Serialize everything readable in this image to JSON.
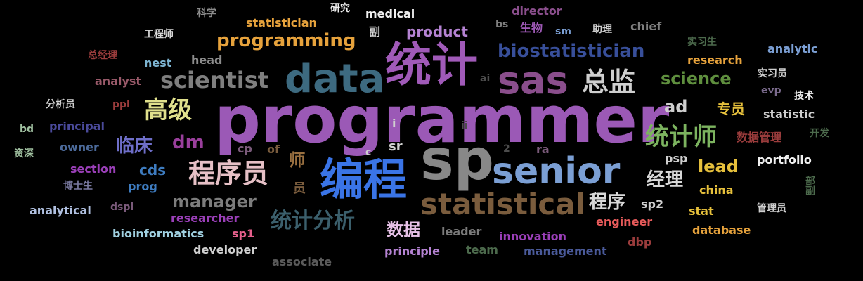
{
  "words": [
    {
      "text": "programmer",
      "color": "#9b59b6"
    },
    {
      "text": "sp",
      "color": "#888888"
    },
    {
      "text": "统计",
      "color": "#a05ab8"
    },
    {
      "text": "编程",
      "color": "#3a74e6"
    },
    {
      "text": "data",
      "color": "#3d6a80"
    },
    {
      "text": "sas",
      "color": "#8a4e8c"
    },
    {
      "text": "senior",
      "color": "#7b9fd4"
    },
    {
      "text": "statistical",
      "color": "#7a5c3d"
    },
    {
      "text": "biostatistician",
      "color": "#384f9a"
    },
    {
      "text": "scientist",
      "color": "#7f7f7f"
    },
    {
      "text": "统计师",
      "color": "#7cb35f"
    },
    {
      "text": "程序员",
      "color": "#e6c0c6"
    },
    {
      "text": "programming",
      "color": "#e6a23c"
    },
    {
      "text": "总监",
      "color": "#cfcfcf"
    },
    {
      "text": "高级",
      "color": "#e0e08c"
    },
    {
      "text": "统计分析",
      "color": "#3b5f6c"
    },
    {
      "text": "science",
      "color": "#5f8f3e"
    },
    {
      "text": "manager",
      "color": "#7d7d7d"
    },
    {
      "text": "product",
      "color": "#b583d3"
    },
    {
      "text": "dm",
      "color": "#9a3f9c"
    },
    {
      "text": "临床",
      "color": "#6e6ec8"
    },
    {
      "text": "lead",
      "color": "#e6c03c"
    },
    {
      "text": "ad",
      "color": "#cfcfcf"
    },
    {
      "text": "程序",
      "color": "#d8d8d8"
    },
    {
      "text": "经理",
      "color": "#d8d8d8"
    },
    {
      "text": "数据",
      "color": "#e6c0e6"
    },
    {
      "text": "师",
      "color": "#9a7040"
    },
    {
      "text": "员",
      "color": "#7a5c3d"
    },
    {
      "text": "cds",
      "color": "#3e7cc0"
    },
    {
      "text": "专员",
      "color": "#e6c03c"
    },
    {
      "text": "statistician",
      "color": "#e6a23c"
    },
    {
      "text": "medical",
      "color": "#f0f0f0"
    },
    {
      "text": "研究",
      "color": "#f0f0f0"
    },
    {
      "text": "director",
      "color": "#8a4e8c"
    },
    {
      "text": "科学",
      "color": "#8c8c8c"
    },
    {
      "text": "工程师",
      "color": "#d8d8d8"
    },
    {
      "text": "副",
      "color": "#d8d8d8"
    },
    {
      "text": "bs",
      "color": "#7f7f7f"
    },
    {
      "text": "生物",
      "color": "#a05ab8"
    },
    {
      "text": "sm",
      "color": "#7b9fd4"
    },
    {
      "text": "助理",
      "color": "#cfcfcf"
    },
    {
      "text": "chief",
      "color": "#7f7f7f"
    },
    {
      "text": "实习生",
      "color": "#4c6a4c"
    },
    {
      "text": "analytic",
      "color": "#7b9fd4"
    },
    {
      "text": "research",
      "color": "#e6a23c"
    },
    {
      "text": "总经理",
      "color": "#9a3c3c"
    },
    {
      "text": "nest",
      "color": "#7cb3d0"
    },
    {
      "text": "head",
      "color": "#8c8c8c"
    },
    {
      "text": "analyst",
      "color": "#9a5a6a"
    },
    {
      "text": "ai",
      "color": "#4c4c4c"
    },
    {
      "text": "实习员",
      "color": "#cfcfcf"
    },
    {
      "text": "evp",
      "color": "#7a6a8c"
    },
    {
      "text": "技术",
      "color": "#f0f0f0"
    },
    {
      "text": "分析员",
      "color": "#cfcfcf"
    },
    {
      "text": "ppl",
      "color": "#9a3c3c"
    },
    {
      "text": "statistic",
      "color": "#cfcfcf"
    },
    {
      "text": "bd",
      "color": "#a0c0a0"
    },
    {
      "text": "principal",
      "color": "#4a4a9a"
    },
    {
      "text": "i",
      "color": "#cfcfcf"
    },
    {
      "text": "ii",
      "color": "#4c4c4c"
    },
    {
      "text": "数据管理",
      "color": "#9a3c3c"
    },
    {
      "text": "开发",
      "color": "#4c6a4c"
    },
    {
      "text": "资深",
      "color": "#a0c0a0"
    },
    {
      "text": "owner",
      "color": "#4c6a9a"
    },
    {
      "text": "cp",
      "color": "#7a5a7a"
    },
    {
      "text": "of",
      "color": "#7a5c3d"
    },
    {
      "text": "c",
      "color": "#cfcfcf"
    },
    {
      "text": "sr",
      "color": "#cfcfcf"
    },
    {
      "text": "2",
      "color": "#4c4c4c"
    },
    {
      "text": "ra",
      "color": "#7a5a7a"
    },
    {
      "text": "psp",
      "color": "#cfcfcf"
    },
    {
      "text": "portfolio",
      "color": "#f0f0f0"
    },
    {
      "text": "section",
      "color": "#9a3fb8"
    },
    {
      "text": "博士生",
      "color": "#7a7aa0"
    },
    {
      "text": "prog",
      "color": "#3e7cc0"
    },
    {
      "text": "部副",
      "color": "#4c6a4c"
    },
    {
      "text": "china",
      "color": "#e6c03c"
    },
    {
      "text": "analytical",
      "color": "#b0c0e0"
    },
    {
      "text": "dspl",
      "color": "#7a5a7a"
    },
    {
      "text": "sp2",
      "color": "#cfcfcf"
    },
    {
      "text": "stat",
      "color": "#e6c03c"
    },
    {
      "text": "管理员",
      "color": "#cfcfcf"
    },
    {
      "text": "researcher",
      "color": "#9a3fb8"
    },
    {
      "text": "engineer",
      "color": "#e65a5a"
    },
    {
      "text": "database",
      "color": "#e6a23c"
    },
    {
      "text": "bioinformatics",
      "color": "#a0d0e0"
    },
    {
      "text": "sp1",
      "color": "#e6608c"
    },
    {
      "text": "leader",
      "color": "#7a7a7a"
    },
    {
      "text": "innovation",
      "color": "#9a3fb8"
    },
    {
      "text": "dbp",
      "color": "#9a3c3c"
    },
    {
      "text": "developer",
      "color": "#cfcfcf"
    },
    {
      "text": "principle",
      "color": "#b583d3"
    },
    {
      "text": "team",
      "color": "#4c6a4c"
    },
    {
      "text": "management",
      "color": "#4a5a9a"
    },
    {
      "text": "associate",
      "color": "#5a5a5a"
    }
  ]
}
